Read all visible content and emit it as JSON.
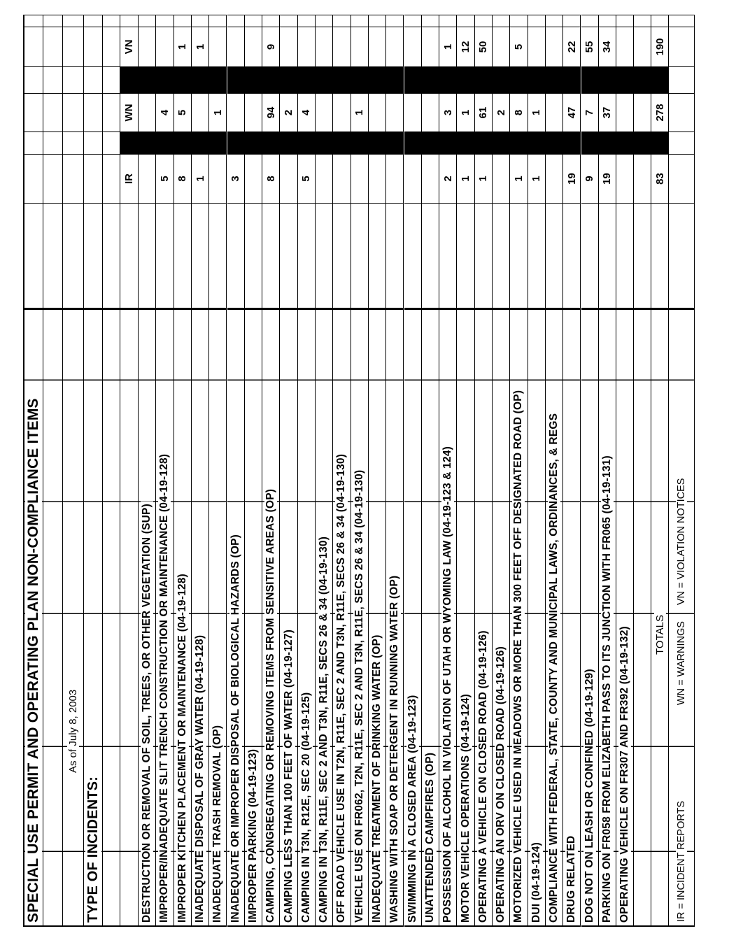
{
  "title": "SPECIAL USE PERMIT AND OPERATING PLAN NON-COMPLIANCE ITEMS",
  "as_of": "As of July 8, 2003",
  "type_heading": "TYPE OF INCIDENTS:",
  "columns": {
    "ir": "IR",
    "wn": "WN",
    "vn": "VN"
  },
  "rows": [
    {
      "label": "DESTRUCTION OR REMOVAL OF SOIL, TREES, OR OTHER VEGETATION (SUP)",
      "ir": "",
      "wn": "",
      "vn": ""
    },
    {
      "label": "IMPROPER/INADEQUATE SLIT TRENCH CONSTRUCTION OR MAINTENANCE (04-19-128)",
      "ir": "5",
      "wn": "4",
      "vn": ""
    },
    {
      "label": "IMPROPER KITCHEN PLACEMENT OR MAINTENANCE (04-19-128)",
      "ir": "8",
      "wn": "5",
      "vn": "1"
    },
    {
      "label": "INADEQUATE DISPOSAL OF GRAY WATER (04-19-128)",
      "ir": "1",
      "wn": "",
      "vn": "1"
    },
    {
      "label": "INADEQUATE TRASH REMOVAL (OP)",
      "ir": "",
      "wn": "1",
      "vn": ""
    },
    {
      "label": "INADEQUATE OR IMPROPER DISPOSAL OF BIOLOGICAL HAZARDS (OP)",
      "ir": "3",
      "wn": "",
      "vn": ""
    },
    {
      "label": "IMPROPER PARKING (04-19-123)",
      "ir": "",
      "wn": "",
      "vn": ""
    },
    {
      "label": "CAMPING, CONGREGATING OR REMOVING ITEMS FROM SENSITIVE AREAS (OP)",
      "ir": "8",
      "wn": "94",
      "vn": "9"
    },
    {
      "label": "CAMPING LESS THAN 100 FEET OF WATER (04-19-127)",
      "ir": "",
      "wn": "2",
      "vn": ""
    },
    {
      "label": "CAMPING IN T3N, R12E, SEC 20 (04-19-125)",
      "ir": "5",
      "wn": "4",
      "vn": ""
    },
    {
      "label": "CAMPING IN T3N, R11E, SEC 2 AND T3N, R11E, SECS 26 & 34 (04-19-130)",
      "ir": "",
      "wn": "",
      "vn": ""
    },
    {
      "label": "OFF ROAD VEHICLE USE IN T2N, R11E, SEC 2 AND T3N, R11E, SECS 26 & 34 (04-19-130)",
      "ir": "",
      "wn": "",
      "vn": ""
    },
    {
      "label": "VEHICLE USE ON FR062, T2N, R11E, SEC 2 AND T3N, R11E, SECS 26 & 34 (04-19-130)",
      "ir": "",
      "wn": "1",
      "vn": ""
    },
    {
      "label": "INADEQUATE TREATMENT OF DRINKING WATER (OP)",
      "ir": "",
      "wn": "",
      "vn": ""
    },
    {
      "label": "WASHING WITH SOAP OR DETERGENT IN RUNNING WATER (OP)",
      "ir": "",
      "wn": "",
      "vn": ""
    },
    {
      "label": "SWIMMING IN A CLOSED AREA (04-19-123)",
      "ir": "",
      "wn": "",
      "vn": ""
    },
    {
      "label": "UNATTENDED CAMPFIRES (OP)",
      "ir": "",
      "wn": "",
      "vn": ""
    },
    {
      "label": "POSSESSION OF ALCOHOL IN VIOLATION OF UTAH OR WYOMING LAW (04-19-123 & 124)",
      "ir": "2",
      "wn": "3",
      "vn": "1"
    },
    {
      "label": "MOTOR VEHICLE OPERATIONS (04-19-124)",
      "ir": "1",
      "wn": "1",
      "vn": "12"
    },
    {
      "label": "OPERATING A VEHICLE ON CLOSED ROAD (04-19-126)",
      "ir": "1",
      "wn": "61",
      "vn": "50"
    },
    {
      "label": "OPERATING AN ORV ON CLOSED ROAD (04-19-126)",
      "ir": "",
      "wn": "2",
      "vn": ""
    },
    {
      "label": "MOTORIZED VEHICLE USED IN MEADOWS OR MORE THAN 300 FEET OFF DESIGNATED ROAD (OP)",
      "ir": "1",
      "wn": "8",
      "vn": "5"
    },
    {
      "label": "DUI (04-19-124)",
      "ir": "1",
      "wn": "1",
      "vn": ""
    },
    {
      "label": "COMPLIANCE WITH FEDERAL, STATE, COUNTY AND MUNICIPAL LAWS, ORDINANCES, & REGS",
      "ir": "",
      "wn": "",
      "vn": ""
    },
    {
      "label": "DRUG RELATED",
      "ir": "19",
      "wn": "47",
      "vn": "22"
    },
    {
      "label": "DOG NOT ON LEASH OR CONFINED (04-19-129)",
      "ir": "9",
      "wn": "7",
      "vn": "55"
    },
    {
      "label": "PARKING ON FR058 FROM ELIZABETH PASS TO ITS JUNCTION WITH FR065 (04-19-131)",
      "ir": "19",
      "wn": "37",
      "vn": "34"
    },
    {
      "label": "OPERATING VEHICLE ON FR307 AND FR392 (04-19-132)",
      "ir": "",
      "wn": "",
      "vn": ""
    }
  ],
  "totals": {
    "label": "TOTALS",
    "ir": "83",
    "wn": "278",
    "vn": "190"
  },
  "legend": {
    "ir": "IR = INCIDENT REPORTS",
    "wn": "WN = WARNINGS",
    "vn": "VN = VIOLATION NOTICES"
  },
  "colors": {
    "ink": "#000000",
    "paper": "#ffffff",
    "redaction_bar": "#000000"
  }
}
